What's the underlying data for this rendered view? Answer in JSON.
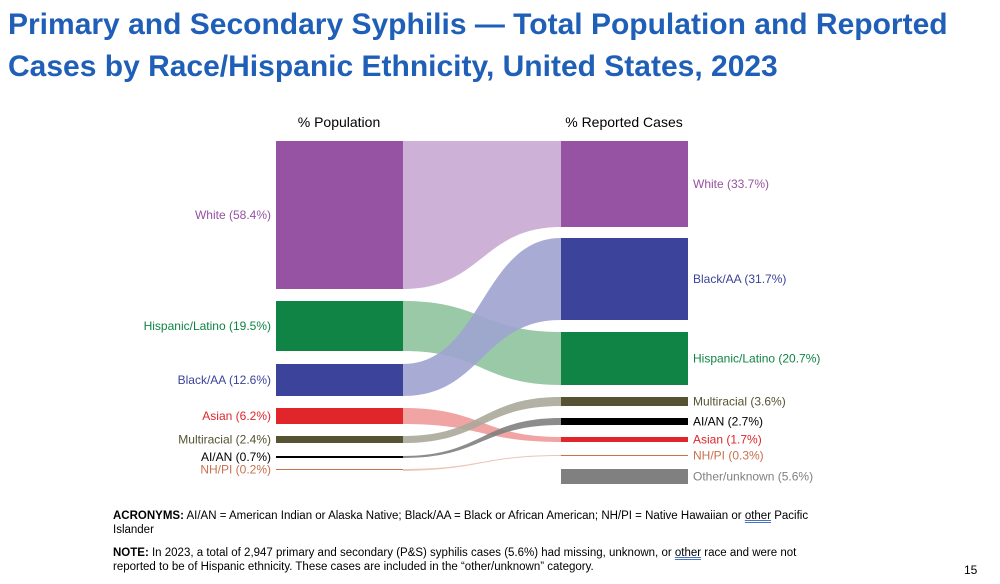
{
  "title": "Primary and Secondary Syphilis — Total Population and Reported Cases by Race/Hispanic Ethnicity, United States, 2023",
  "chart_data": {
    "type": "sankey",
    "left_header": "% Population",
    "right_header": "% Reported Cases",
    "left_nodes": [
      {
        "key": "white",
        "label": "White (58.4%)",
        "value": 58.4,
        "color": "#9652a3"
      },
      {
        "key": "hispanic",
        "label": "Hispanic/Latino (19.5%)",
        "value": 19.5,
        "color": "#0f8444"
      },
      {
        "key": "black",
        "label": "Black/AA (12.6%)",
        "value": 12.6,
        "color": "#3b439a"
      },
      {
        "key": "asian",
        "label": "Asian (6.2%)",
        "value": 6.2,
        "color": "#e0252b"
      },
      {
        "key": "multi",
        "label": "Multiracial (2.4%)",
        "value": 2.4,
        "color": "#555331"
      },
      {
        "key": "aian",
        "label": "AI/AN (0.7%)",
        "value": 0.7,
        "color": "#000000"
      },
      {
        "key": "nhpi",
        "label": "NH/PI (0.2%)",
        "value": 0.2,
        "color": "#c8714f"
      }
    ],
    "right_nodes": [
      {
        "key": "white",
        "label": "White (33.7%)",
        "value": 33.7,
        "color": "#9652a3"
      },
      {
        "key": "black",
        "label": "Black/AA (31.7%)",
        "value": 31.7,
        "color": "#3b439a"
      },
      {
        "key": "hispanic",
        "label": "Hispanic/Latino (20.7%)",
        "value": 20.7,
        "color": "#0f8444"
      },
      {
        "key": "multi",
        "label": "Multiracial (3.6%)",
        "value": 3.6,
        "color": "#555331"
      },
      {
        "key": "aian",
        "label": "AI/AN (2.7%)",
        "value": 2.7,
        "color": "#000000"
      },
      {
        "key": "asian",
        "label": "Asian (1.7%)",
        "value": 1.7,
        "color": "#e0252b"
      },
      {
        "key": "nhpi",
        "label": "NH/PI (0.3%)",
        "value": 0.3,
        "color": "#c8714f"
      },
      {
        "key": "other",
        "label": "Other/unknown (5.6%)",
        "value": 5.6,
        "color": "#808080"
      }
    ],
    "flow_colors": {
      "white": "#c9a8d3",
      "black": "#9fa3d0",
      "hispanic": "#8fc39d",
      "asian": "#f09a9a",
      "multi": "#aaa99a",
      "aian": "#808080",
      "nhpi": "#e8c0b0"
    }
  },
  "acronyms": {
    "label": "ACRONYMS:",
    "text": "AI/AN = American Indian or Alaska Native; Black/AA = Black or African American; NH/PI = Native Hawaiian or ",
    "underlined": "other",
    "text2": " Pacific Islander"
  },
  "note": {
    "label": "NOTE:",
    "text": "In 2023, a total of 2,947 primary and secondary (P&S) syphilis cases (5.6%) had missing, unknown, or ",
    "underlined": "other",
    "text2": " race and were not reported to be of Hispanic ethnicity. These cases are included in the “other/unknown” category."
  },
  "page_number": "15"
}
